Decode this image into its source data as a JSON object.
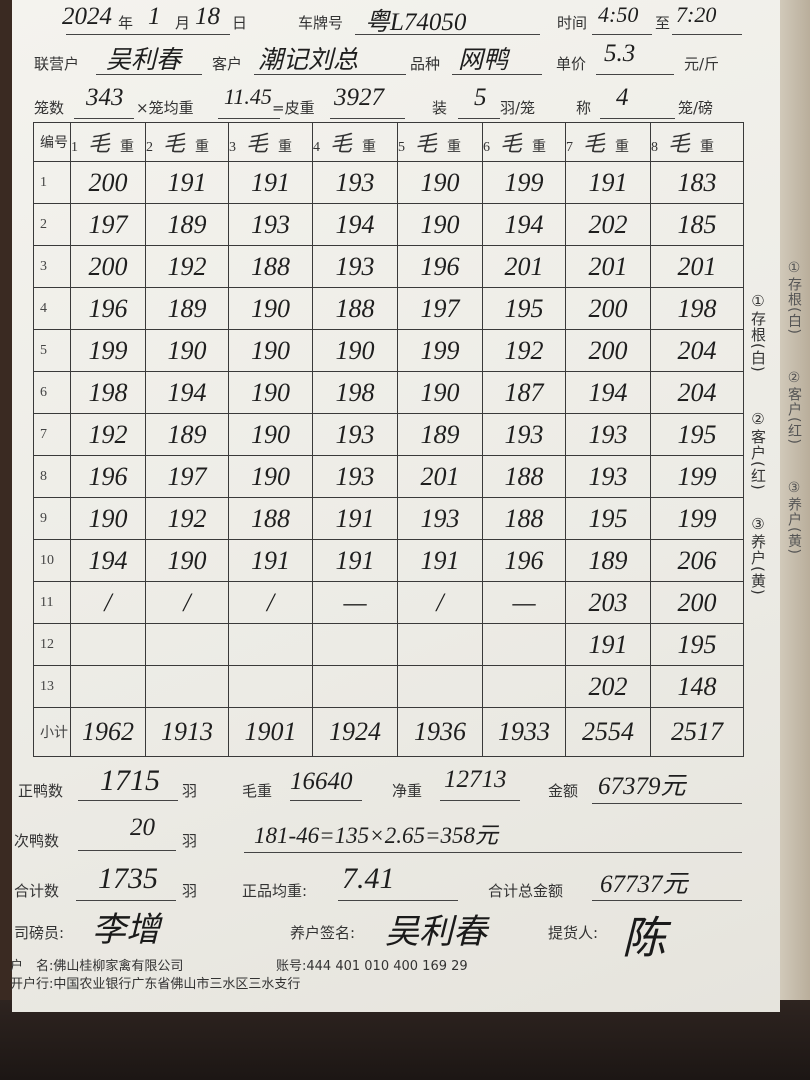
{
  "header": {
    "year": "2024",
    "year_label": "年",
    "month": "1",
    "month_label": "月",
    "day": "18",
    "day_label": "日",
    "plate_label": "车牌号",
    "plate": "粤L74050",
    "time_label": "时间",
    "time_from": "4:50",
    "time_to_label": "至",
    "time_to": "7:20",
    "partner_label": "联营户",
    "partner": "吴利春",
    "customer_label": "客户",
    "customer": "潮记刘总",
    "breed_label": "品种",
    "breed": "网鸭",
    "price_label": "单价",
    "price": "5.3",
    "price_unit": "元/斤",
    "cages_label": "笼数",
    "cages": "343",
    "avg_cage_label": "×笼均重",
    "avg_cage": "11.45",
    "tare_label": "=皮重",
    "tare": "3927",
    "per_cage_label": "装",
    "per_cage": "5",
    "per_cage_unit": "羽/笼",
    "weigh_label": "称",
    "weigh": "4",
    "weigh_unit": "笼/磅"
  },
  "table": {
    "index_header": "编号",
    "col_headers": [
      {
        "num": "1",
        "mark": "毛",
        "label": "重"
      },
      {
        "num": "2",
        "mark": "毛",
        "label": "重"
      },
      {
        "num": "3",
        "mark": "毛",
        "label": "重"
      },
      {
        "num": "4",
        "mark": "毛",
        "label": "重"
      },
      {
        "num": "5",
        "mark": "毛",
        "label": "重"
      },
      {
        "num": "6",
        "mark": "毛",
        "label": "重"
      },
      {
        "num": "7",
        "mark": "毛",
        "label": "重"
      },
      {
        "num": "8",
        "mark": "毛",
        "label": "重"
      }
    ],
    "rows": [
      {
        "no": "1",
        "cells": [
          "200",
          "191",
          "191",
          "193",
          "190",
          "199",
          "191",
          "183"
        ]
      },
      {
        "no": "2",
        "cells": [
          "197",
          "189",
          "193",
          "194",
          "190",
          "194",
          "202",
          "185"
        ]
      },
      {
        "no": "3",
        "cells": [
          "200",
          "192",
          "188",
          "193",
          "196",
          "201",
          "201",
          "201"
        ]
      },
      {
        "no": "4",
        "cells": [
          "196",
          "189",
          "190",
          "188",
          "197",
          "195",
          "200",
          "198"
        ]
      },
      {
        "no": "5",
        "cells": [
          "199",
          "190",
          "190",
          "190",
          "199",
          "192",
          "200",
          "204"
        ]
      },
      {
        "no": "6",
        "cells": [
          "198",
          "194",
          "190",
          "198",
          "190",
          "187",
          "194",
          "204"
        ]
      },
      {
        "no": "7",
        "cells": [
          "192",
          "189",
          "190",
          "193",
          "189",
          "193",
          "193",
          "195"
        ]
      },
      {
        "no": "8",
        "cells": [
          "196",
          "197",
          "190",
          "193",
          "201",
          "188",
          "193",
          "199"
        ]
      },
      {
        "no": "9",
        "cells": [
          "190",
          "192",
          "188",
          "191",
          "193",
          "188",
          "195",
          "199"
        ]
      },
      {
        "no": "10",
        "cells": [
          "194",
          "190",
          "191",
          "191",
          "191",
          "196",
          "189",
          "206"
        ]
      },
      {
        "no": "11",
        "cells": [
          "/",
          "/",
          "/",
          "—",
          "/",
          "—",
          "203",
          "200"
        ]
      },
      {
        "no": "12",
        "cells": [
          "",
          "",
          "",
          "",
          "",
          "",
          "191",
          "195"
        ]
      },
      {
        "no": "13",
        "cells": [
          "",
          "",
          "",
          "",
          "",
          "",
          "202",
          "148"
        ]
      }
    ],
    "subtotal_label": "小计",
    "subtotals": [
      "1962",
      "1913",
      "1901",
      "1924",
      "1936",
      "1933",
      "2554",
      "2517"
    ]
  },
  "side": {
    "copy1": "①存根(白)",
    "copy2": "②客户(红)",
    "copy3": "③养户(黄)"
  },
  "summary": {
    "good_ducks_label": "正鸭数",
    "good_ducks": "1715",
    "unit_bird": "羽",
    "gross_label": "毛重",
    "gross": "16640",
    "net_label": "净重",
    "net": "12713",
    "amount_label": "金额",
    "amount": "67379元",
    "sub_ducks_label": "次鸭数",
    "sub_ducks": "20",
    "sub_calc": "181-46=135×2.65=358元",
    "total_count_label": "合计数",
    "total_count": "1735",
    "avg_weight_label": "正品均重:",
    "avg_weight": "7.41",
    "total_amount_label": "合计总金额",
    "total_amount": "67737元"
  },
  "signatures": {
    "weigher_label": "司磅员:",
    "weigher": "李增",
    "farmer_label": "养户签名:",
    "farmer": "吴利春",
    "picker_label": "提货人:",
    "picker": "陈"
  },
  "bank": {
    "account_name_label": "户　名:",
    "account_name": "佛山桂柳家禽有限公司",
    "account_no_label": "账号:",
    "account_no": "444 401 010 400 169 29",
    "bank_label": "开户行:",
    "bank": "中国农业银行广东省佛山市三水区三水支行"
  }
}
